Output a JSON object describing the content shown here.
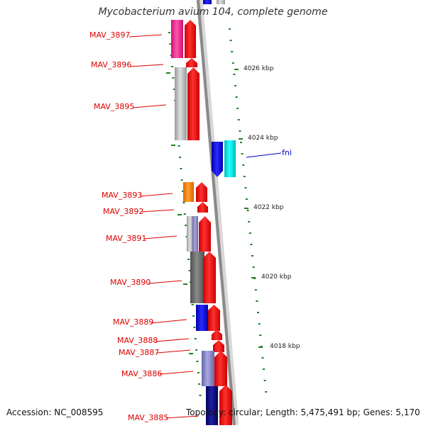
{
  "title": "Mycobacterium avium 104, complete genome",
  "footer": {
    "accession": "Accession: NC_008595",
    "summary": "Topology: circular; Length: 5,475,491 bp; Genes: 5,170"
  },
  "colors": {
    "red": "#ff0000",
    "blue": "#1010ee",
    "cyan": "#00eeee",
    "pink": "#ee2288",
    "orange": "#ff8800",
    "gray": "#b8b8b8",
    "dark_gray": "#707070",
    "lavender": "#8888cc",
    "navy": "#101080",
    "label_red": "#dd0000",
    "label_blue": "#0000cc",
    "tick_green": "#208020"
  },
  "scale_labels": [
    "4026 kbp",
    "4024 kbp",
    "4022 kbp",
    "4020 kbp",
    "4018 kbp"
  ],
  "gene_labels": [
    {
      "text": "MAV_3897",
      "color": "red"
    },
    {
      "text": "MAV_3896",
      "color": "red"
    },
    {
      "text": "MAV_3895",
      "color": "red"
    },
    {
      "text": "fni",
      "color": "blue"
    },
    {
      "text": "MAV_3893",
      "color": "red"
    },
    {
      "text": "MAV_3892",
      "color": "red"
    },
    {
      "text": "MAV_3891",
      "color": "red"
    },
    {
      "text": "MAV_3890",
      "color": "red"
    },
    {
      "text": "MAV_3889",
      "color": "red"
    },
    {
      "text": "MAV_3888",
      "color": "red"
    },
    {
      "text": "MAV_3887",
      "color": "red"
    },
    {
      "text": "MAV_3886",
      "color": "red"
    },
    {
      "text": "MAV_3885",
      "color": "red"
    }
  ]
}
